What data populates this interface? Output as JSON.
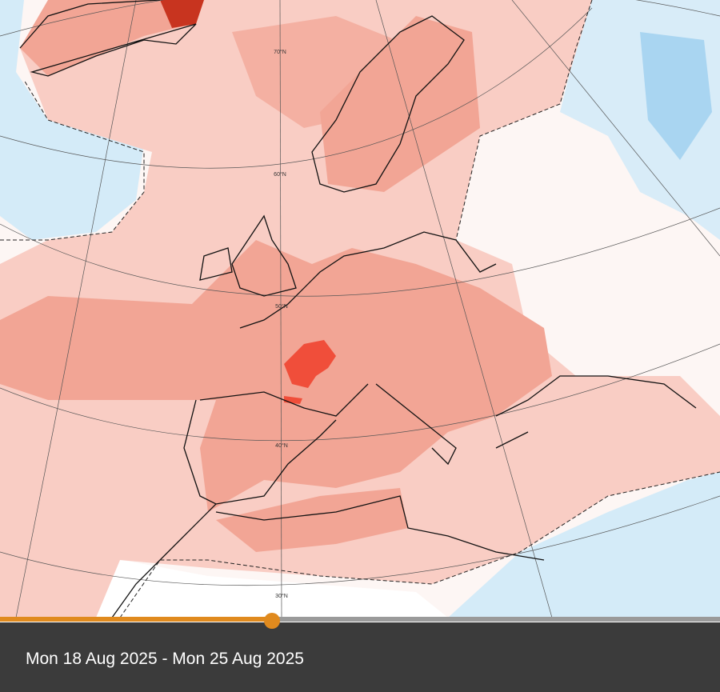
{
  "map": {
    "latitude_labels": [
      "70°N",
      "60°N",
      "50°N",
      "40°N",
      "30°N"
    ]
  },
  "footer": {
    "date_range": "Mon 18 Aug 2025 - Mon 25 Aug 2025"
  }
}
